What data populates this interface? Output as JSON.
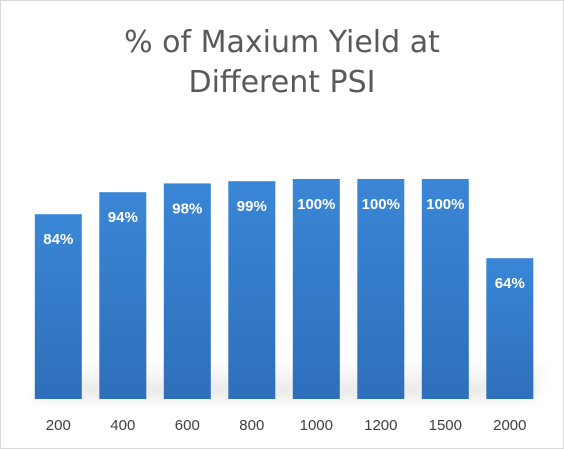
{
  "chart_data": {
    "type": "bar",
    "title": "% of Maxium Yield at\nDifferent PSI",
    "xlabel": "",
    "ylabel": "",
    "categories": [
      "200",
      "400",
      "600",
      "800",
      "1000",
      "1200",
      "1500",
      "2000"
    ],
    "values": [
      84,
      94,
      98,
      99,
      100,
      100,
      100,
      64
    ],
    "data_labels": [
      "84%",
      "94%",
      "98%",
      "99%",
      "100%",
      "100%",
      "100%",
      "64%"
    ],
    "ylim": [
      0,
      100
    ],
    "grid": false,
    "legend": "none",
    "bar_color": "#3a86d6",
    "bar_color_bottom": "#2e6fba",
    "label_color": "#ffffff",
    "title_color": "#595959",
    "tick_color": "#404040"
  }
}
